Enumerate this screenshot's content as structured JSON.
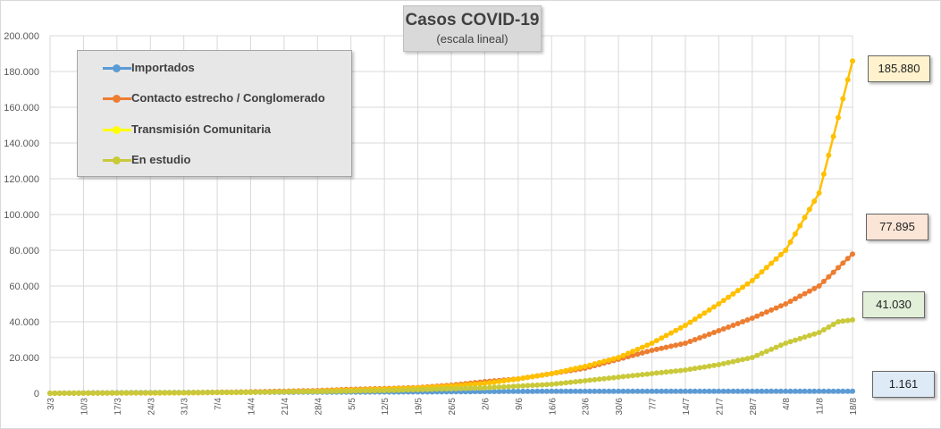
{
  "chart_data": {
    "type": "line",
    "title": "Casos COVID-19",
    "subtitle": "(escala lineal)",
    "xlabel": "",
    "ylabel": "",
    "ylim": [
      0,
      200000
    ],
    "yticks": [
      "0",
      "20.000",
      "40.000",
      "60.000",
      "80.000",
      "100.000",
      "120.000",
      "140.000",
      "160.000",
      "180.000",
      "200.000"
    ],
    "xticks": [
      "3/3",
      "10/3",
      "17/3",
      "24/3",
      "31/3",
      "7/4",
      "14/4",
      "21/4",
      "28/4",
      "5/5",
      "12/5",
      "19/5",
      "26/5",
      "2/6",
      "9/6",
      "16/6",
      "23/6",
      "30/6",
      "7/7",
      "14/7",
      "21/7",
      "28/7",
      "4/8",
      "11/8",
      "18/8"
    ],
    "grid": true,
    "legend_position": "top-left",
    "days": 169,
    "series": [
      {
        "name": "Importados",
        "color": "#5b9bd5",
        "end_label": "1.161",
        "points": [
          [
            0,
            0
          ],
          [
            7,
            200
          ],
          [
            14,
            300
          ],
          [
            28,
            450
          ],
          [
            56,
            600
          ],
          [
            84,
            800
          ],
          [
            91,
            1000
          ],
          [
            105,
            1100
          ],
          [
            168,
            1161
          ]
        ]
      },
      {
        "name": "Contacto estrecho / Conglomerado",
        "color": "#ed7d31",
        "end_label": "77.895",
        "points": [
          [
            0,
            0
          ],
          [
            14,
            150
          ],
          [
            28,
            300
          ],
          [
            42,
            800
          ],
          [
            56,
            1500
          ],
          [
            63,
            2200
          ],
          [
            70,
            2600
          ],
          [
            77,
            3200
          ],
          [
            84,
            4500
          ],
          [
            91,
            6500
          ],
          [
            98,
            8000
          ],
          [
            105,
            11000
          ],
          [
            112,
            14000
          ],
          [
            119,
            19000
          ],
          [
            126,
            24000
          ],
          [
            133,
            28000
          ],
          [
            140,
            35000
          ],
          [
            147,
            42000
          ],
          [
            154,
            50000
          ],
          [
            161,
            60000
          ],
          [
            168,
            77895
          ]
        ]
      },
      {
        "name": "Transmisión Comunitaria",
        "color": "#ffc000",
        "end_label": "185.880",
        "points": [
          [
            0,
            0
          ],
          [
            14,
            100
          ],
          [
            28,
            200
          ],
          [
            42,
            500
          ],
          [
            56,
            1200
          ],
          [
            63,
            1800
          ],
          [
            70,
            2300
          ],
          [
            77,
            3000
          ],
          [
            84,
            4000
          ],
          [
            91,
            5500
          ],
          [
            98,
            8000
          ],
          [
            105,
            11000
          ],
          [
            112,
            15000
          ],
          [
            119,
            20000
          ],
          [
            126,
            28000
          ],
          [
            133,
            38000
          ],
          [
            140,
            50000
          ],
          [
            147,
            63000
          ],
          [
            154,
            80000
          ],
          [
            161,
            112000
          ],
          [
            168,
            185880
          ]
        ]
      },
      {
        "name": "En estudio",
        "color": "#c9c93a",
        "end_label": "41.030",
        "points": [
          [
            0,
            0
          ],
          [
            14,
            200
          ],
          [
            28,
            400
          ],
          [
            42,
            600
          ],
          [
            56,
            900
          ],
          [
            70,
            1500
          ],
          [
            84,
            2500
          ],
          [
            91,
            3000
          ],
          [
            98,
            4000
          ],
          [
            105,
            5000
          ],
          [
            112,
            7000
          ],
          [
            119,
            9000
          ],
          [
            126,
            11000
          ],
          [
            133,
            13000
          ],
          [
            140,
            16000
          ],
          [
            147,
            20000
          ],
          [
            154,
            28000
          ],
          [
            161,
            34000
          ],
          [
            165,
            40000
          ],
          [
            168,
            41030
          ]
        ]
      }
    ],
    "legend_colors": {
      "Importados": "#5b9bd5",
      "Contacto estrecho / Conglomerado": "#ed7d31",
      "Transmisión Comunitaria": "#ffff00",
      "En estudio": "#c9c93a"
    },
    "callouts": [
      {
        "text": "185.880",
        "bg": "#fff2cc"
      },
      {
        "text": "77.895",
        "bg": "#fbe5d6"
      },
      {
        "text": "41.030",
        "bg": "#e2f0d9"
      },
      {
        "text": "1.161",
        "bg": "#deebf7"
      }
    ]
  }
}
